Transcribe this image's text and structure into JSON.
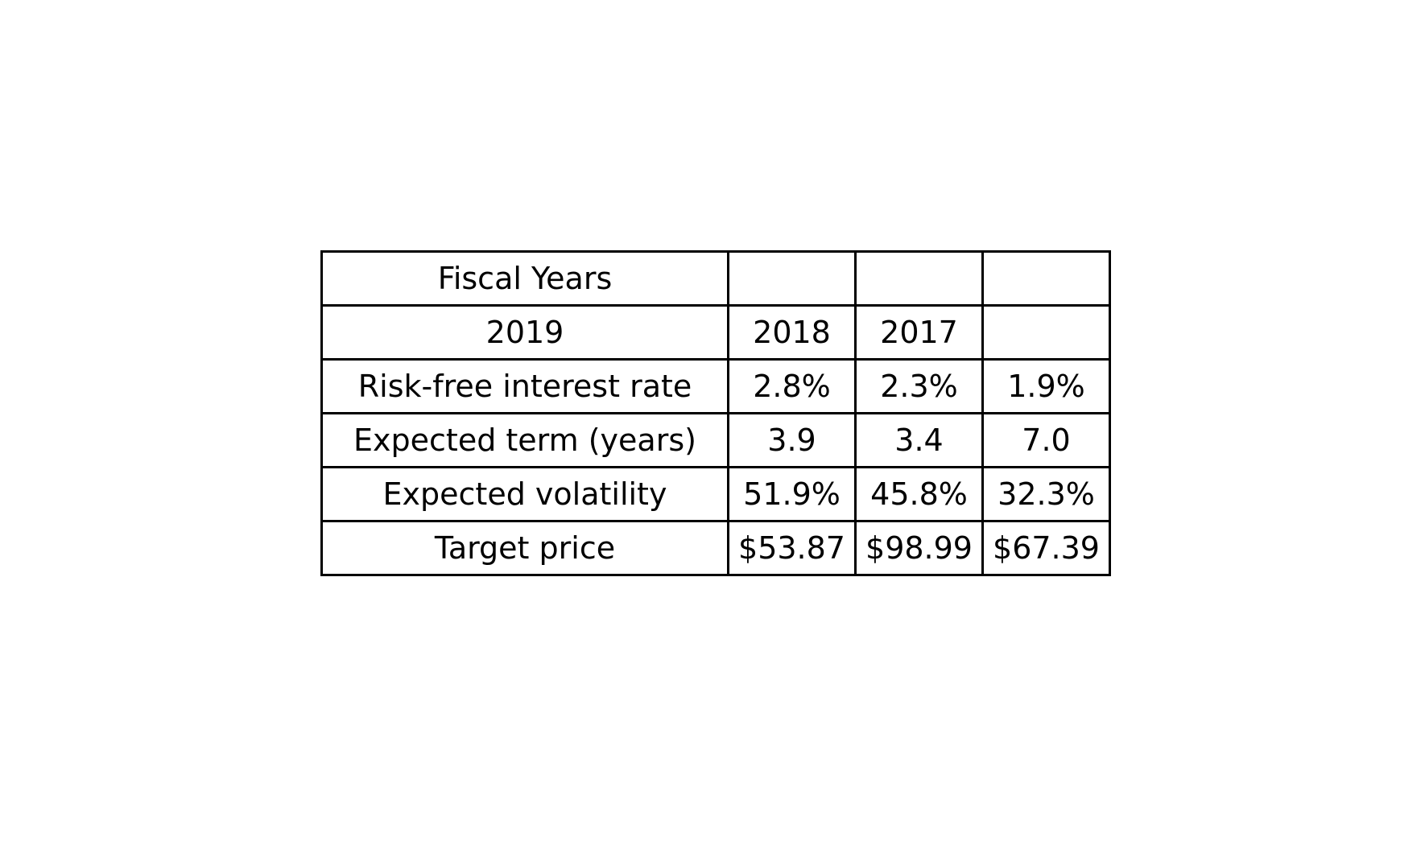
{
  "chart_data": {
    "type": "table",
    "rows": [
      [
        "Fiscal Years",
        "",
        "",
        ""
      ],
      [
        "2019",
        "2018",
        "2017",
        ""
      ],
      [
        "Risk-free interest rate",
        "2.8%",
        "2.3%",
        "1.9%"
      ],
      [
        "Expected term (years)",
        "3.9",
        "3.4",
        "7.0"
      ],
      [
        "Expected volatility",
        "51.9%",
        "45.8%",
        "32.3%"
      ],
      [
        "Target price",
        "$53.87",
        "$98.99",
        "$67.39"
      ]
    ]
  }
}
